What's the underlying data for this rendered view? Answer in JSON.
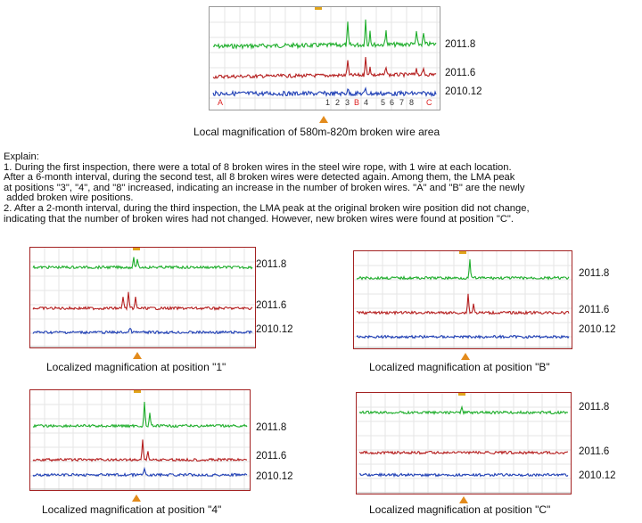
{
  "colors": {
    "green": "#1fae2c",
    "red": "#b51f1f",
    "blue": "#1f3fb5",
    "frame": "#a32222",
    "marker": "#e38b1c"
  },
  "main_chart": {
    "series_labels": [
      "2011.8",
      "2011.6",
      "2010.12"
    ],
    "position_labels": [
      "A",
      "1",
      "2",
      "3",
      "B",
      "4",
      "5",
      "6",
      "7",
      "8",
      "C"
    ],
    "caption": "Local magnification of 580m-820m broken wire area"
  },
  "explain": {
    "heading": "Explain:",
    "lines": [
      "1. During the first inspection, there were a total of 8 broken wires in the steel wire rope, with 1 wire at each location.",
      "After a 6-month interval, during the second test, all 8 broken wires were detected again. Among them, the LMA peak",
      "at positions \"3\", \"4\", and \"8\" increased, indicating an increase in the number of broken wires. \"A\" and \"B\" are the newly",
      " added broken wire positions.",
      "2. After a 2-month interval, during the third inspection, the LMA peak at the original broken wire position did not change,",
      "indicating that the number of broken wires had not changed. However, new broken wires were found at position \"C\"."
    ]
  },
  "panels": [
    {
      "id": "1",
      "series_labels": [
        "2011.8",
        "2011.6",
        "2010.12"
      ],
      "caption": "Localized magnification at position \"1\""
    },
    {
      "id": "B",
      "series_labels": [
        "2011.8",
        "2011.6",
        "2010.12"
      ],
      "caption": "Localized magnification at position \"B\""
    },
    {
      "id": "4",
      "series_labels": [
        "2011.8",
        "2011.6",
        "2010.12"
      ],
      "caption": "Localized magnification at position \"4\""
    },
    {
      "id": "C",
      "series_labels": [
        "2011.8",
        "2011.6",
        "2010.12"
      ],
      "caption": "Localized magnification at position \"C\""
    }
  ],
  "chart_data": [
    {
      "type": "line",
      "title": "Local magnification of 580m-820m broken wire area",
      "xlabel": "",
      "ylabel": "",
      "x_range_m": [
        580,
        820
      ],
      "grid": true,
      "series": [
        {
          "name": "2011.8",
          "color": "#1fae2c"
        },
        {
          "name": "2011.6",
          "color": "#b51f1f"
        },
        {
          "name": "2010.12",
          "color": "#1f3fb5"
        }
      ],
      "marked_positions": [
        "A",
        "1",
        "2",
        "3",
        "B",
        "4",
        "5",
        "6",
        "7",
        "8",
        "C"
      ]
    },
    {
      "type": "line",
      "title": "Localized magnification at position \"1\"",
      "series": [
        {
          "name": "2011.8"
        },
        {
          "name": "2011.6"
        },
        {
          "name": "2010.12"
        }
      ]
    },
    {
      "type": "line",
      "title": "Localized magnification at position \"B\"",
      "series": [
        {
          "name": "2011.8"
        },
        {
          "name": "2011.6"
        },
        {
          "name": "2010.12"
        }
      ]
    },
    {
      "type": "line",
      "title": "Localized magnification at position \"4\"",
      "series": [
        {
          "name": "2011.8"
        },
        {
          "name": "2011.6"
        },
        {
          "name": "2010.12"
        }
      ]
    },
    {
      "type": "line",
      "title": "Localized magnification at position \"C\"",
      "series": [
        {
          "name": "2011.8"
        },
        {
          "name": "2011.6"
        },
        {
          "name": "2010.12"
        }
      ]
    }
  ]
}
